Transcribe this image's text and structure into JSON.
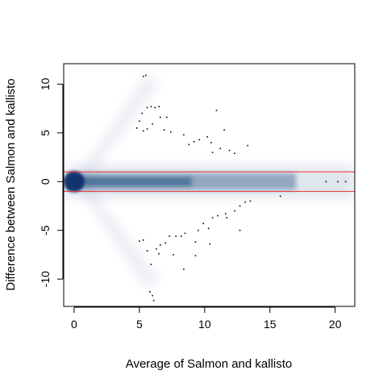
{
  "chart_data": {
    "type": "scatter",
    "title": "",
    "xlabel": "Average of Salmon and kallisto",
    "ylabel": "Difference between Salmon and kallisto",
    "xlim": [
      -0.8,
      21.5
    ],
    "ylim": [
      -12.8,
      12.1
    ],
    "x_ticks": [
      0,
      5,
      10,
      15,
      20
    ],
    "y_ticks": [
      -10,
      -5,
      0,
      5,
      10
    ],
    "x_tick_labels": [
      "0",
      "5",
      "10",
      "15",
      "20"
    ],
    "y_tick_labels": [
      "-10",
      "-5",
      "0",
      "5",
      "10"
    ],
    "grid": false,
    "legend": "none",
    "style": "smoothScatter density (blue) with outlier points",
    "density_color": "#08306b",
    "hlines": [
      {
        "y": 1,
        "color": "#e8302f"
      },
      {
        "y": -1,
        "color": "#e8302f"
      }
    ],
    "points": [
      {
        "x": 5.3,
        "y": 10.8
      },
      {
        "x": 5.5,
        "y": 10.9
      },
      {
        "x": 5.6,
        "y": 7.6
      },
      {
        "x": 5.9,
        "y": 7.7
      },
      {
        "x": 6.2,
        "y": 7.6
      },
      {
        "x": 6.5,
        "y": 7.7
      },
      {
        "x": 5.2,
        "y": 7.0
      },
      {
        "x": 6.6,
        "y": 6.6
      },
      {
        "x": 7.1,
        "y": 6.6
      },
      {
        "x": 4.8,
        "y": 5.5
      },
      {
        "x": 5.0,
        "y": 6.2
      },
      {
        "x": 5.3,
        "y": 5.2
      },
      {
        "x": 5.6,
        "y": 5.4
      },
      {
        "x": 6.0,
        "y": 5.9
      },
      {
        "x": 6.9,
        "y": 5.3
      },
      {
        "x": 7.4,
        "y": 5.1
      },
      {
        "x": 8.4,
        "y": 4.8
      },
      {
        "x": 8.8,
        "y": 3.8
      },
      {
        "x": 9.2,
        "y": 4.1
      },
      {
        "x": 9.6,
        "y": 4.3
      },
      {
        "x": 10.2,
        "y": 4.6
      },
      {
        "x": 10.5,
        "y": 4.0
      },
      {
        "x": 10.6,
        "y": 3.0
      },
      {
        "x": 10.9,
        "y": 7.3
      },
      {
        "x": 11.2,
        "y": 3.4
      },
      {
        "x": 11.5,
        "y": 5.3
      },
      {
        "x": 11.9,
        "y": 3.2
      },
      {
        "x": 12.3,
        "y": 2.9
      },
      {
        "x": 13.3,
        "y": 3.7
      },
      {
        "x": 19.3,
        "y": 0.0
      },
      {
        "x": 20.2,
        "y": 0.0
      },
      {
        "x": 20.8,
        "y": 0.0
      },
      {
        "x": 15.8,
        "y": -1.5
      },
      {
        "x": 13.5,
        "y": -2.0
      },
      {
        "x": 13.1,
        "y": -2.1
      },
      {
        "x": 12.7,
        "y": -2.5
      },
      {
        "x": 12.3,
        "y": -3.0
      },
      {
        "x": 11.6,
        "y": -3.3
      },
      {
        "x": 11.0,
        "y": -3.5
      },
      {
        "x": 10.6,
        "y": -3.7
      },
      {
        "x": 11.7,
        "y": -3.7
      },
      {
        "x": 10.3,
        "y": -4.8
      },
      {
        "x": 9.9,
        "y": -4.3
      },
      {
        "x": 9.5,
        "y": -5.0
      },
      {
        "x": 12.7,
        "y": -5.0
      },
      {
        "x": 8.5,
        "y": -5.3
      },
      {
        "x": 8.2,
        "y": -5.6
      },
      {
        "x": 7.8,
        "y": -5.6
      },
      {
        "x": 7.3,
        "y": -5.6
      },
      {
        "x": 7.0,
        "y": -6.3
      },
      {
        "x": 6.6,
        "y": -6.5
      },
      {
        "x": 6.3,
        "y": -6.9
      },
      {
        "x": 10.4,
        "y": -6.4
      },
      {
        "x": 9.3,
        "y": -6.2
      },
      {
        "x": 5.0,
        "y": -6.1
      },
      {
        "x": 5.3,
        "y": -6.0
      },
      {
        "x": 5.6,
        "y": -7.1
      },
      {
        "x": 5.9,
        "y": -8.5
      },
      {
        "x": 6.5,
        "y": -7.4
      },
      {
        "x": 7.6,
        "y": -7.5
      },
      {
        "x": 8.4,
        "y": -9.0
      },
      {
        "x": 9.3,
        "y": -7.6
      },
      {
        "x": 5.8,
        "y": -11.3
      },
      {
        "x": 6.0,
        "y": -11.7
      },
      {
        "x": 6.1,
        "y": -12.2
      }
    ]
  }
}
